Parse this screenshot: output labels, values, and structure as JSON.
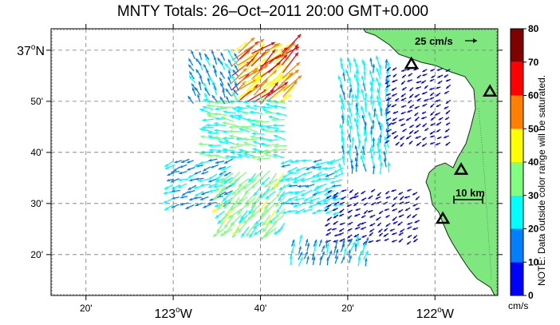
{
  "title": "MNTY Totals: 26–Oct–2011 20:00 GMT+0.000",
  "chart_data": {
    "type": "vector-map",
    "lat_ticks": [
      {
        "label_main": "37",
        "label_deg": "o",
        "label_dir": "N",
        "lat": 37.0
      },
      {
        "label": "50'",
        "lat": 36.8333
      },
      {
        "label": "40'",
        "lat": 36.6667
      },
      {
        "label": "30'",
        "lat": 36.5
      },
      {
        "label": "20'",
        "lat": 36.3333
      }
    ],
    "lon_ticks": [
      {
        "label": "20'",
        "lon": -123.3333
      },
      {
        "label_main": "123",
        "label_deg": "o",
        "label_dir": "W",
        "lon": -123.0
      },
      {
        "label": "40'",
        "lon": -122.6667
      },
      {
        "label": "20'",
        "lon": -122.3333
      },
      {
        "label_main": "122",
        "label_deg": "o",
        "label_dir": "W",
        "lon": -122.0
      }
    ],
    "lat_range": [
      36.2,
      37.07
    ],
    "lon_range": [
      -123.4667,
      -121.76
    ],
    "scale_vector": {
      "label": "25 cm/s",
      "speed": 25
    },
    "scale_bar": {
      "label": "10 km"
    },
    "colorbar": {
      "ticks": [
        0,
        10,
        20,
        30,
        40,
        50,
        60,
        70,
        80
      ],
      "units": "cm/s",
      "colors": [
        "#0000ff",
        "#0080ff",
        "#00ffff",
        "#80ff80",
        "#ffff00",
        "#ff8000",
        "#ff0000",
        "#800000"
      ]
    },
    "note": "NOTE: Data outside color range will be saturated.",
    "land_color": "#7ee87e",
    "sites": [
      {
        "lat": 36.955,
        "lon": -122.09
      },
      {
        "lat": 36.865,
        "lon": -121.79
      },
      {
        "lat": 36.61,
        "lon": -121.9
      },
      {
        "lat": 36.45,
        "lon": -121.97
      }
    ],
    "vector_fields": [
      {
        "region": [
          -122.78,
          -122.58,
          36.83,
          37.0
        ],
        "speed": 55,
        "dir": [
          0.5,
          0.4
        ]
      },
      {
        "region": [
          -122.85,
          -122.55,
          36.65,
          36.85
        ],
        "speed": 28,
        "dir": [
          -0.9,
          0.1
        ]
      },
      {
        "region": [
          -123.0,
          -122.75,
          36.5,
          36.65
        ],
        "speed": 18,
        "dir": [
          -0.85,
          -0.3
        ]
      },
      {
        "region": [
          -122.8,
          -122.55,
          36.42,
          36.62
        ],
        "speed": 33,
        "dir": [
          -0.6,
          -0.6
        ]
      },
      {
        "region": [
          -122.55,
          -122.35,
          36.48,
          36.66
        ],
        "speed": 24,
        "dir": [
          -0.7,
          -0.2
        ]
      },
      {
        "region": [
          -122.35,
          -122.17,
          36.6,
          36.95
        ],
        "speed": 22,
        "dir": [
          -0.1,
          0.9
        ]
      },
      {
        "region": [
          -122.17,
          -121.92,
          36.7,
          36.95
        ],
        "speed": 8,
        "dir": [
          -0.5,
          -0.3
        ]
      },
      {
        "region": [
          -122.4,
          -122.05,
          36.38,
          36.56
        ],
        "speed": 8,
        "dir": [
          -0.5,
          -0.3
        ]
      },
      {
        "region": [
          -122.55,
          -122.25,
          36.3,
          36.38
        ],
        "speed": 18,
        "dir": [
          0.2,
          0.8
        ]
      },
      {
        "region": [
          -122.92,
          -122.73,
          36.83,
          36.98
        ],
        "speed": 18,
        "dir": [
          -0.3,
          0.6
        ]
      }
    ]
  }
}
